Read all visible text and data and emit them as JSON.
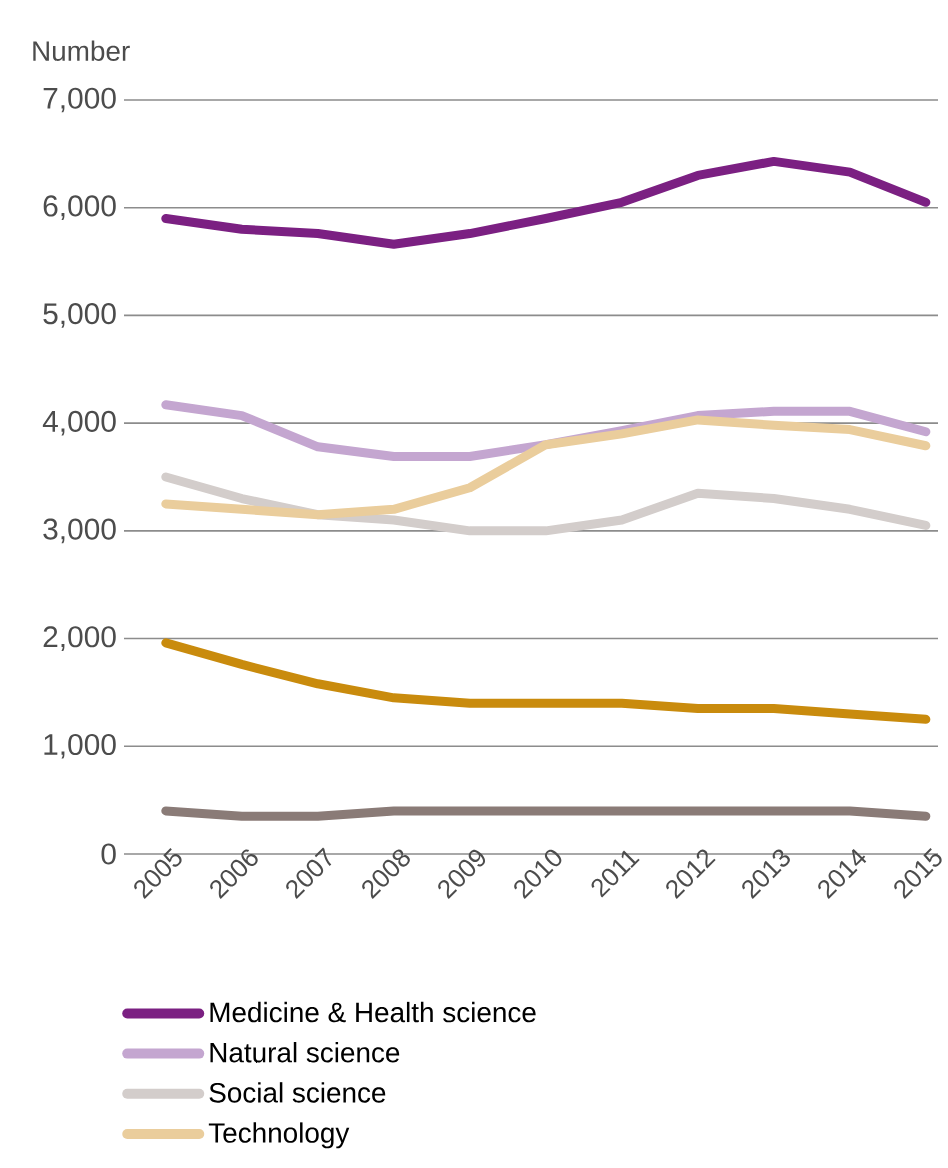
{
  "chart_data": {
    "type": "line",
    "ylabel": "Number",
    "categories": [
      "2005",
      "2006",
      "2007",
      "2008",
      "2009",
      "2010",
      "2011",
      "2012",
      "2013",
      "2014",
      "2015"
    ],
    "series": [
      {
        "name": "Medicine & Health science",
        "color": "#7b2082",
        "values": [
          5900,
          5800,
          5760,
          5660,
          5760,
          5900,
          6050,
          6300,
          6430,
          6330,
          6050
        ]
      },
      {
        "name": "Natural science",
        "color": "#c4a6d0",
        "values": [
          4170,
          4070,
          3780,
          3690,
          3690,
          3800,
          3930,
          4070,
          4110,
          4110,
          3920
        ]
      },
      {
        "name": "Social science",
        "color": "#d3cdcb",
        "values": [
          3500,
          3300,
          3150,
          3100,
          3000,
          3000,
          3100,
          3350,
          3300,
          3200,
          3050
        ]
      },
      {
        "name": "Technology",
        "color": "#eacd9c",
        "values": [
          3250,
          3200,
          3150,
          3200,
          3400,
          3800,
          3900,
          4030,
          3980,
          3940,
          3790
        ]
      },
      {
        "color": "#c98b0d",
        "values": [
          1960,
          1760,
          1580,
          1450,
          1400,
          1400,
          1400,
          1350,
          1350,
          1300,
          1250
        ]
      },
      {
        "color": "#8a7b77",
        "values": [
          400,
          350,
          350,
          400,
          400,
          400,
          400,
          400,
          400,
          400,
          350
        ]
      }
    ],
    "ylim": [
      0,
      7000
    ],
    "yticks": [
      {
        "value": 0,
        "label": "0"
      },
      {
        "value": 1000,
        "label": "1,000"
      },
      {
        "value": 2000,
        "label": "2,000"
      },
      {
        "value": 3000,
        "label": "3,000"
      },
      {
        "value": 4000,
        "label": "4,000"
      },
      {
        "value": 5000,
        "label": "5,000"
      },
      {
        "value": 6000,
        "label": "6,000"
      },
      {
        "value": 7000,
        "label": "7,000"
      }
    ],
    "grid": "y",
    "legend": "bottom",
    "marker": "none",
    "line_style": "solid"
  }
}
